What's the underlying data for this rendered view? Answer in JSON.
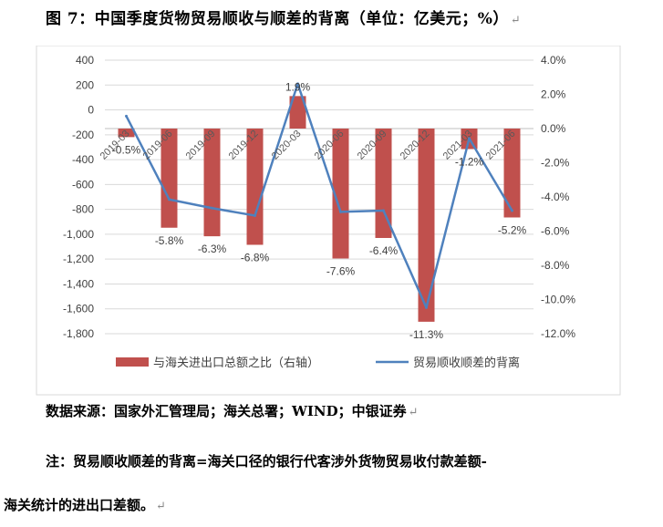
{
  "figure": {
    "title": "图 7：中国季度货物贸易顺收与顺差的背离（单位：亿美元；%）",
    "source": "数据来源：国家外汇管理局；海关总署；WIND；中银证券",
    "note_line1": "注：贸易顺收顺差的背离=海关口径的银行代客涉外货物贸易收付款差额-",
    "note_line2": "海关统计的进出口差额。"
  },
  "colors": {
    "bar": "#C0504D",
    "line": "#4F81BD",
    "grid": "#D9D9D9",
    "axis": "#BFBFBF"
  },
  "chart_data": {
    "type": "bar",
    "categories": [
      "2019-03",
      "2019-06",
      "2019-09",
      "2019-12",
      "2020-03",
      "2020-06",
      "2020-09",
      "2020-12",
      "2021-03",
      "2021-06"
    ],
    "series": [
      {
        "name": "与海关进出口总额之比（右轴）",
        "type": "bar",
        "axis": "right",
        "values": [
          -0.5,
          -5.8,
          -6.3,
          -6.8,
          1.9,
          -7.6,
          -6.4,
          -11.3,
          -1.2,
          -5.2
        ],
        "data_labels": [
          "-0.5%",
          "-5.8%",
          "-6.3%",
          "-6.8%",
          "1.9%",
          "-7.6%",
          "-6.4%",
          "-11.3%",
          "-1.2%",
          "-5.2%"
        ]
      },
      {
        "name": "贸易顺收顺差的背离",
        "type": "line",
        "axis": "left",
        "values": [
          -50,
          -720,
          -790,
          -850,
          210,
          -820,
          -810,
          -1590,
          -230,
          -810
        ]
      }
    ],
    "y_left": {
      "min": -1800,
      "max": 400,
      "step": 200,
      "tick_labels": [
        "400",
        "200",
        "0",
        "-200",
        "-400",
        "-600",
        "-800",
        "-1,000",
        "-1,200",
        "-1,400",
        "-1,600",
        "-1,800"
      ]
    },
    "y_right": {
      "min": -12,
      "max": 4,
      "step": 2,
      "tick_labels": [
        "4.0%",
        "2.0%",
        "0.0%",
        "-2.0%",
        "-4.0%",
        "-6.0%",
        "-8.0%",
        "-10.0%",
        "-12.0%"
      ]
    },
    "grid": true,
    "legend_position": "bottom"
  }
}
